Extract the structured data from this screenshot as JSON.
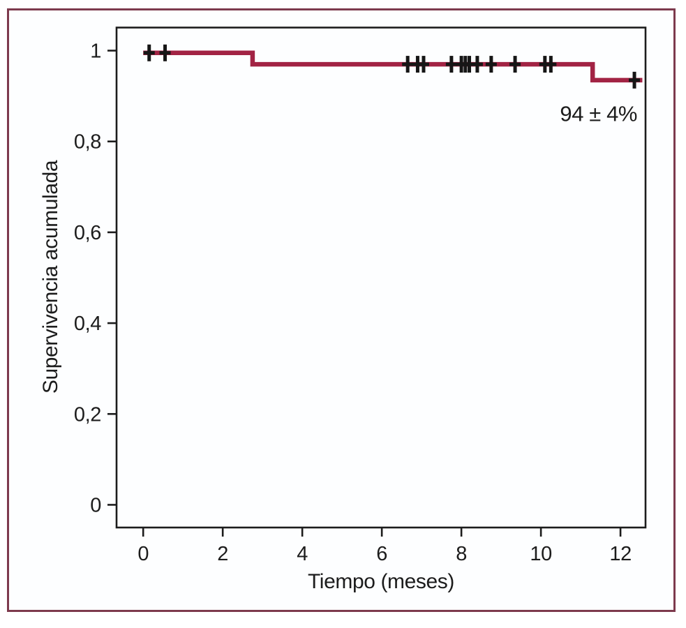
{
  "figure": {
    "kind": "kaplan-meier-survival-plot",
    "language": "es"
  },
  "colors": {
    "curve": "#a22344",
    "frame_border": "#7d3a4d",
    "plot_background": "#fdfeff",
    "axis": "#1c1c1c",
    "censor": "#161616",
    "text": "#1c1c1c"
  },
  "chart_data": {
    "type": "line",
    "subtype": "kaplan-meier-step",
    "title": "",
    "xlabel": "Tiempo (meses)",
    "ylabel": "Supervivencia acumulada",
    "xlim": [
      -0.67,
      12.63
    ],
    "ylim": [
      -0.05,
      1.05
    ],
    "grid": false,
    "legend": "none",
    "x_ticks": [
      {
        "value": 0,
        "label": "0"
      },
      {
        "value": 2,
        "label": "2"
      },
      {
        "value": 4,
        "label": "4"
      },
      {
        "value": 6,
        "label": "6"
      },
      {
        "value": 8,
        "label": "8"
      },
      {
        "value": 10,
        "label": "10"
      },
      {
        "value": 12,
        "label": "12"
      }
    ],
    "y_ticks": [
      {
        "value": 0,
        "label": "0"
      },
      {
        "value": 0.2,
        "label": "0,2"
      },
      {
        "value": 0.4,
        "label": "0,4"
      },
      {
        "value": 0.6,
        "label": "0,6"
      },
      {
        "value": 0.8,
        "label": "0,8"
      },
      {
        "value": 1,
        "label": "1"
      }
    ],
    "series": [
      {
        "name": "Supervivencia acumulada",
        "steps": [
          {
            "t": 0,
            "s": 0.995
          },
          {
            "t": 2.75,
            "s": 0.97
          },
          {
            "t": 11.3,
            "s": 0.935
          }
        ],
        "end_t": 12.55,
        "censored": [
          {
            "t": 0.15,
            "s": 0.995
          },
          {
            "t": 0.55,
            "s": 0.995
          },
          {
            "t": 6.65,
            "s": 0.97
          },
          {
            "t": 6.9,
            "s": 0.97
          },
          {
            "t": 7.05,
            "s": 0.97
          },
          {
            "t": 7.75,
            "s": 0.97
          },
          {
            "t": 8.0,
            "s": 0.97
          },
          {
            "t": 8.1,
            "s": 0.97
          },
          {
            "t": 8.2,
            "s": 0.97
          },
          {
            "t": 8.4,
            "s": 0.97
          },
          {
            "t": 8.75,
            "s": 0.97
          },
          {
            "t": 9.35,
            "s": 0.97
          },
          {
            "t": 10.1,
            "s": 0.97
          },
          {
            "t": 10.25,
            "s": 0.97
          },
          {
            "t": 12.35,
            "s": 0.935
          }
        ]
      }
    ],
    "annotation": {
      "text": "94 ± 4%",
      "x_month": 11.45,
      "y_survival": 0.862
    }
  }
}
